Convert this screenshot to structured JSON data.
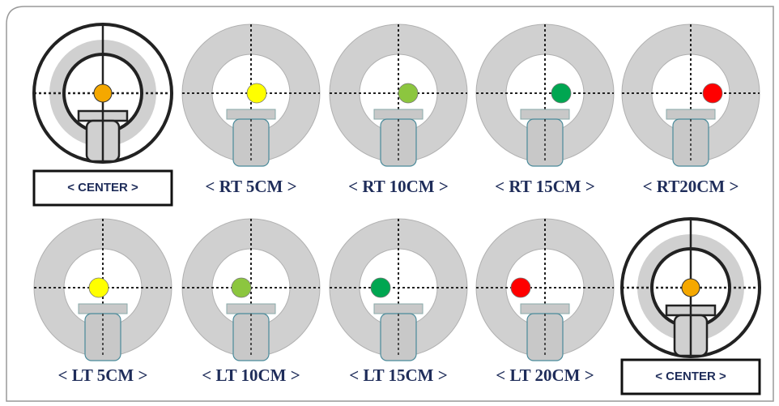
{
  "panels": [
    {
      "label": "< CENTER >",
      "dot": "#f5a800"
    },
    {
      "label": "< RT 5CM >",
      "dot": "#ffff00"
    },
    {
      "label": "< RT 10CM >",
      "dot": "#8cc63f"
    },
    {
      "label": "< RT 15CM >",
      "dot": "#00a651"
    },
    {
      "label": "< RT20CM >",
      "dot": "#ff0000"
    },
    {
      "label": "< LT 5CM >",
      "dot": "#ffff00"
    },
    {
      "label": "< LT 10CM >",
      "dot": "#8cc63f"
    },
    {
      "label": "< LT 15CM >",
      "dot": "#00a651"
    },
    {
      "label": "< LT 20CM >",
      "dot": "#ff0000"
    },
    {
      "label": "< CENTER >",
      "dot": "#f5a800"
    }
  ]
}
